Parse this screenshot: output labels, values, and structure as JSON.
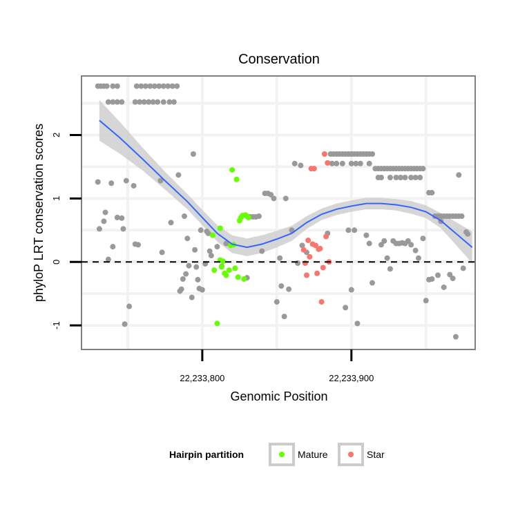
{
  "chart_data": {
    "type": "scatter",
    "title": "Conservation",
    "xlabel": "Genomic Position",
    "ylabel": "phyloP LRT conservation scores",
    "xlim": [
      22233719,
      22233983
    ],
    "ylim": [
      -1.38,
      2.93
    ],
    "x_ticks": [
      {
        "value": 22233800,
        "label": "22,233,800"
      },
      {
        "value": 22233900,
        "label": "22,233,900"
      }
    ],
    "y_ticks": [
      {
        "value": -1,
        "label": "-1"
      },
      {
        "value": 0,
        "label": "0"
      },
      {
        "value": 1,
        "label": "1"
      },
      {
        "value": 2,
        "label": "2"
      }
    ],
    "reference_line_y": 0,
    "legend": {
      "title": "Hairpin partition",
      "entries": [
        {
          "label": "Mature",
          "color": "#66ff00"
        },
        {
          "label": "Star",
          "color": "#f8766d"
        }
      ]
    },
    "colors": {
      "other": "#999999",
      "mature": "#66ff00",
      "star": "#f8766d",
      "smooth": "#3366ff",
      "band": "#cccccc"
    },
    "smooth_line": [
      {
        "x": 22233731,
        "y": 2.23
      },
      {
        "x": 22233745,
        "y": 1.95
      },
      {
        "x": 22233760,
        "y": 1.62
      },
      {
        "x": 22233775,
        "y": 1.28
      },
      {
        "x": 22233790,
        "y": 0.95
      },
      {
        "x": 22233800,
        "y": 0.7
      },
      {
        "x": 22233810,
        "y": 0.45
      },
      {
        "x": 22233820,
        "y": 0.28
      },
      {
        "x": 22233830,
        "y": 0.23
      },
      {
        "x": 22233840,
        "y": 0.28
      },
      {
        "x": 22233850,
        "y": 0.36
      },
      {
        "x": 22233860,
        "y": 0.45
      },
      {
        "x": 22233870,
        "y": 0.62
      },
      {
        "x": 22233880,
        "y": 0.75
      },
      {
        "x": 22233890,
        "y": 0.83
      },
      {
        "x": 22233900,
        "y": 0.88
      },
      {
        "x": 22233910,
        "y": 0.92
      },
      {
        "x": 22233920,
        "y": 0.92
      },
      {
        "x": 22233930,
        "y": 0.9
      },
      {
        "x": 22233940,
        "y": 0.86
      },
      {
        "x": 22233950,
        "y": 0.79
      },
      {
        "x": 22233960,
        "y": 0.65
      },
      {
        "x": 22233970,
        "y": 0.45
      },
      {
        "x": 22233981,
        "y": 0.23
      }
    ],
    "band_halfwidth": [
      0.32,
      0.25,
      0.18,
      0.14,
      0.12,
      0.12,
      0.13,
      0.14,
      0.14,
      0.14,
      0.13,
      0.12,
      0.1,
      0.09,
      0.09,
      0.09,
      0.09,
      0.09,
      0.09,
      0.1,
      0.1,
      0.12,
      0.18,
      0.25
    ],
    "series": [
      {
        "name": "Other",
        "color": "#999999",
        "points": [
          [
            22233730,
            2.77
          ],
          [
            22233732,
            2.77
          ],
          [
            22233734,
            2.77
          ],
          [
            22233736,
            2.77
          ],
          [
            22233740,
            2.77
          ],
          [
            22233743,
            2.77
          ],
          [
            22233737,
            2.52
          ],
          [
            22233740,
            2.52
          ],
          [
            22233743,
            2.52
          ],
          [
            22233746,
            2.52
          ],
          [
            22233756,
            2.77
          ],
          [
            22233759,
            2.77
          ],
          [
            22233762,
            2.77
          ],
          [
            22233765,
            2.77
          ],
          [
            22233768,
            2.77
          ],
          [
            22233771,
            2.77
          ],
          [
            22233774,
            2.77
          ],
          [
            22233777,
            2.77
          ],
          [
            22233780,
            2.77
          ],
          [
            22233783,
            2.77
          ],
          [
            22233755,
            2.52
          ],
          [
            22233758,
            2.52
          ],
          [
            22233761,
            2.52
          ],
          [
            22233764,
            2.52
          ],
          [
            22233767,
            2.52
          ],
          [
            22233770,
            2.52
          ],
          [
            22233774,
            2.52
          ],
          [
            22233778,
            2.52
          ],
          [
            22233781,
            2.52
          ],
          [
            22233730,
            1.26
          ],
          [
            22233731,
            0.52
          ],
          [
            22233734,
            0.64
          ],
          [
            22233735,
            0.78
          ],
          [
            22233737,
            0.04
          ],
          [
            22233739,
            1.24
          ],
          [
            22233740,
            0.24
          ],
          [
            22233743,
            0.7
          ],
          [
            22233746,
            0.69
          ],
          [
            22233747,
            0.52
          ],
          [
            22233748,
            -0.98
          ],
          [
            22233749,
            1.28
          ],
          [
            22233751,
            -0.7
          ],
          [
            22233754,
            1.2
          ],
          [
            22233755,
            0.28
          ],
          [
            22233757,
            0.27
          ],
          [
            22233772,
            1.28
          ],
          [
            22233773,
            0.15
          ],
          [
            22233779,
            0.62
          ],
          [
            22233784,
            1.37
          ],
          [
            22233785,
            -0.46
          ],
          [
            22233786,
            -0.43
          ],
          [
            22233787,
            -0.27
          ],
          [
            22233788,
            0.72
          ],
          [
            22233789,
            -0.19
          ],
          [
            22233790,
            0.37
          ],
          [
            22233791,
            -0.06
          ],
          [
            22233794,
            1.7
          ],
          [
            22233793,
            -0.56
          ],
          [
            22233795,
            0.19
          ],
          [
            22233796,
            -0.08
          ],
          [
            22233797,
            -0.28
          ],
          [
            22233798,
            -0.42
          ],
          [
            22233799,
            0.5
          ],
          [
            22233800,
            -0.44
          ],
          [
            22233802,
            -0.03
          ],
          [
            22233803,
            0.48
          ],
          [
            22233804,
            0.45
          ],
          [
            22233805,
            0.17
          ],
          [
            22233806,
            0.1
          ],
          [
            22233810,
            0.24
          ],
          [
            22233813,
            -0.07
          ],
          [
            22233816,
            0.29
          ],
          [
            22233830,
            -0.25
          ],
          [
            22233832,
            0.71
          ],
          [
            22233834,
            0.71
          ],
          [
            22233836,
            0.71
          ],
          [
            22233838,
            0.72
          ],
          [
            22233840,
            0.17
          ],
          [
            22233842,
            1.08
          ],
          [
            22233844,
            1.08
          ],
          [
            22233846,
            1.06
          ],
          [
            22233848,
            1.0
          ],
          [
            22233850,
            -0.63
          ],
          [
            22233852,
            0.06
          ],
          [
            22233853,
            -0.38
          ],
          [
            22233855,
            -0.86
          ],
          [
            22233856,
            1.0
          ],
          [
            22233858,
            -0.43
          ],
          [
            22233860,
            0.5
          ],
          [
            22233862,
            1.55
          ],
          [
            22233864,
            -0.02
          ],
          [
            22233866,
            1.52
          ],
          [
            22233867,
            0.26
          ],
          [
            22233870,
            0.15
          ],
          [
            22233884,
            0.45
          ],
          [
            22233886,
            1.7
          ],
          [
            22233888,
            1.7
          ],
          [
            22233890,
            1.7
          ],
          [
            22233892,
            1.7
          ],
          [
            22233894,
            1.7
          ],
          [
            22233896,
            1.7
          ],
          [
            22233898,
            1.7
          ],
          [
            22233900,
            1.7
          ],
          [
            22233902,
            1.7
          ],
          [
            22233904,
            1.7
          ],
          [
            22233906,
            1.7
          ],
          [
            22233908,
            1.7
          ],
          [
            22233910,
            1.7
          ],
          [
            22233912,
            1.7
          ],
          [
            22233914,
            1.7
          ],
          [
            22233887,
            1.55
          ],
          [
            22233890,
            1.55
          ],
          [
            22233894,
            1.55
          ],
          [
            22233900,
            1.55
          ],
          [
            22233903,
            1.55
          ],
          [
            22233906,
            1.55
          ],
          [
            22233912,
            1.55
          ],
          [
            22233896,
            -0.72
          ],
          [
            22233900,
            -0.44
          ],
          [
            22233898,
            0.5
          ],
          [
            22233902,
            0.5
          ],
          [
            22233904,
            -0.97
          ],
          [
            22233910,
            0.42
          ],
          [
            22233912,
            0.29
          ],
          [
            22233914,
            -0.33
          ],
          [
            22233916,
            1.47
          ],
          [
            22233918,
            1.47
          ],
          [
            22233920,
            1.47
          ],
          [
            22233922,
            1.47
          ],
          [
            22233924,
            1.47
          ],
          [
            22233926,
            1.47
          ],
          [
            22233928,
            1.47
          ],
          [
            22233930,
            1.47
          ],
          [
            22233932,
            1.47
          ],
          [
            22233934,
            1.47
          ],
          [
            22233936,
            1.47
          ],
          [
            22233938,
            1.47
          ],
          [
            22233940,
            1.47
          ],
          [
            22233942,
            1.47
          ],
          [
            22233944,
            1.47
          ],
          [
            22233946,
            1.47
          ],
          [
            22233948,
            1.47
          ],
          [
            22233918,
            1.33
          ],
          [
            22233920,
            1.33
          ],
          [
            22233926,
            1.33
          ],
          [
            22233930,
            1.33
          ],
          [
            22233933,
            1.33
          ],
          [
            22233936,
            1.33
          ],
          [
            22233940,
            1.33
          ],
          [
            22233943,
            1.33
          ],
          [
            22233946,
            1.33
          ],
          [
            22233920,
            0.27
          ],
          [
            22233922,
            0.33
          ],
          [
            22233924,
            0.06
          ],
          [
            22233926,
            -0.11
          ],
          [
            22233928,
            0.33
          ],
          [
            22233930,
            0.29
          ],
          [
            22233932,
            0.29
          ],
          [
            22233934,
            0.3
          ],
          [
            22233936,
            0.29
          ],
          [
            22233938,
            0.33
          ],
          [
            22233940,
            0.27
          ],
          [
            22233943,
            0.18
          ],
          [
            22233945,
            0.06
          ],
          [
            22233948,
            0.37
          ],
          [
            22233950,
            -0.61
          ],
          [
            22233952,
            1.09
          ],
          [
            22233954,
            1.09
          ],
          [
            22233952,
            -0.28
          ],
          [
            22233954,
            -0.27
          ],
          [
            22233956,
            0.72
          ],
          [
            22233958,
            0.72
          ],
          [
            22233960,
            0.72
          ],
          [
            22233962,
            0.72
          ],
          [
            22233964,
            0.72
          ],
          [
            22233966,
            0.72
          ],
          [
            22233968,
            0.72
          ],
          [
            22233970,
            0.72
          ],
          [
            22233972,
            0.72
          ],
          [
            22233974,
            0.72
          ],
          [
            22233958,
            -0.21
          ],
          [
            22233962,
            -0.4
          ],
          [
            22233966,
            -0.2
          ],
          [
            22233968,
            -0.26
          ],
          [
            22233970,
            -1.18
          ],
          [
            22233972,
            1.37
          ],
          [
            22233975,
            -0.1
          ],
          [
            22233977,
            0.47
          ],
          [
            22233978,
            0.44
          ],
          [
            22233960,
            0.64
          ]
        ]
      },
      {
        "name": "Mature",
        "color": "#66ff00",
        "points": [
          [
            22233807,
            0.42
          ],
          [
            22233812,
            0.53
          ],
          [
            22233808,
            -0.13
          ],
          [
            22233810,
            -0.97
          ],
          [
            22233812,
            0.03
          ],
          [
            22233813,
            -0.08
          ],
          [
            22233814,
            0.01
          ],
          [
            22233815,
            -0.18
          ],
          [
            22233816,
            -0.21
          ],
          [
            22233818,
            -0.13
          ],
          [
            22233819,
            0.26
          ],
          [
            22233820,
            1.45
          ],
          [
            22233821,
            0.27
          ],
          [
            22233822,
            -0.1
          ],
          [
            22233823,
            1.3
          ],
          [
            22233824,
            -0.24
          ],
          [
            22233825,
            0.65
          ],
          [
            22233826,
            0.7
          ],
          [
            22233827,
            0.73
          ],
          [
            22233828,
            -0.27
          ],
          [
            22233829,
            0.74
          ],
          [
            22233830,
            0.72
          ],
          [
            22233831,
            0.7
          ]
        ]
      },
      {
        "name": "Star",
        "color": "#f8766d",
        "points": [
          [
            22233868,
            0.19
          ],
          [
            22233869,
            -0.02
          ],
          [
            22233870,
            -0.21
          ],
          [
            22233871,
            0.34
          ],
          [
            22233872,
            0.08
          ],
          [
            22233873,
            1.47
          ],
          [
            22233874,
            0.28
          ],
          [
            22233875,
            1.47
          ],
          [
            22233876,
            0.26
          ],
          [
            22233877,
            -0.18
          ],
          [
            22233878,
            0.2
          ],
          [
            22233879,
            0.21
          ],
          [
            22233880,
            -0.63
          ],
          [
            22233881,
            -0.09
          ],
          [
            22233882,
            1.7
          ],
          [
            22233883,
            0.4
          ],
          [
            22233884,
            1.56
          ],
          [
            22233885,
            0.0
          ]
        ]
      }
    ]
  }
}
